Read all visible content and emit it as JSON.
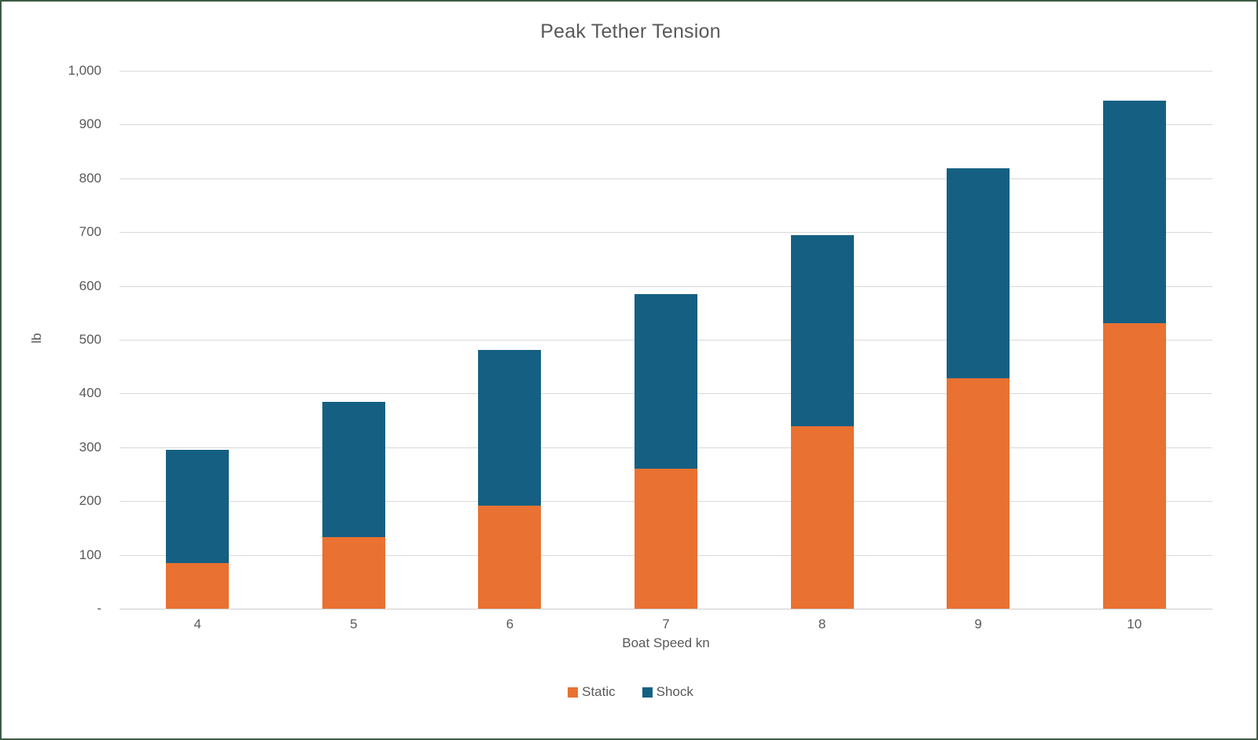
{
  "window": {
    "background": "#ffffff",
    "border_color": "#3e5c44"
  },
  "chart_data": {
    "type": "bar",
    "stacked": true,
    "title": "Peak Tether Tension",
    "xlabel": "Boat Speed kn",
    "ylabel": "lb",
    "categories": [
      "4",
      "5",
      "6",
      "7",
      "8",
      "9",
      "10"
    ],
    "series": [
      {
        "name": "Static",
        "color": "#E97132",
        "values": [
          85,
          133,
          191,
          260,
          339,
          429,
          530
        ]
      },
      {
        "name": "Shock",
        "color": "#156082",
        "values": [
          210,
          252,
          290,
          325,
          355,
          390,
          415
        ]
      }
    ],
    "stack_totals": [
      295,
      385,
      481,
      585,
      694,
      819,
      945
    ],
    "ylim": [
      0,
      1000
    ],
    "ytick_step": 100,
    "ytick_labels": [
      "-",
      "100",
      "200",
      "300",
      "400",
      "500",
      "600",
      "700",
      "800",
      "900",
      "1,000"
    ],
    "grid": "horizontal",
    "gridline_color": "#d9d9d9",
    "text_color": "#595959",
    "legend_position": "bottom"
  }
}
